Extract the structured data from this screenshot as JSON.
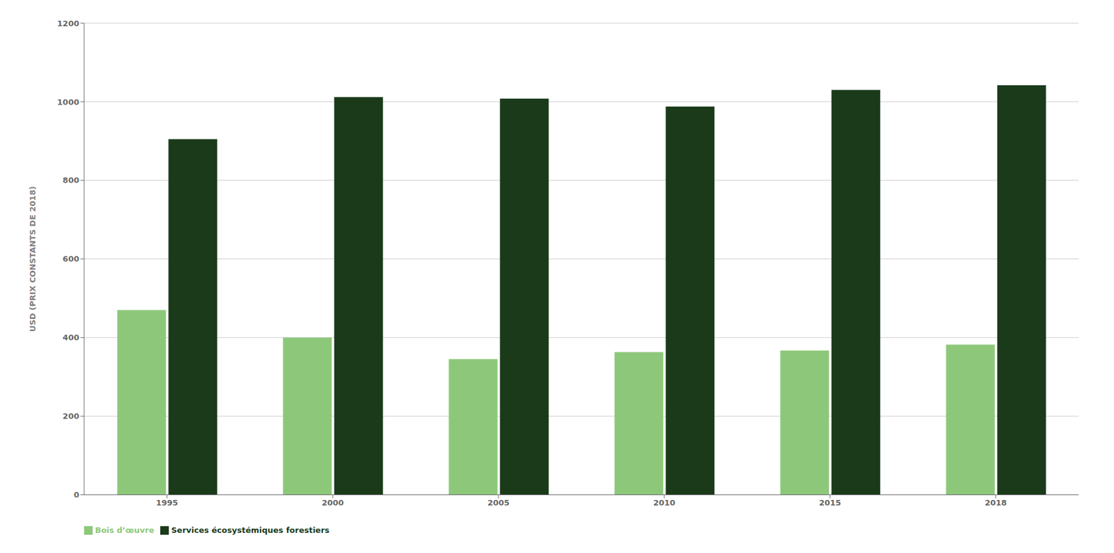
{
  "chart_data": {
    "type": "bar",
    "categories": [
      "1995",
      "2000",
      "2005",
      "2010",
      "2015",
      "2018"
    ],
    "series": [
      {
        "name": "Bois d’œuvre",
        "color": "#8dc87a",
        "values": [
          470,
          400,
          345,
          363,
          367,
          382
        ]
      },
      {
        "name": "Services écosystémiques forestiers",
        "color": "#1a3a1a",
        "values": [
          905,
          1012,
          1008,
          988,
          1030,
          1042
        ]
      }
    ],
    "ylabel": "USD (PRIX CONSTANTS DE 2018)",
    "ylim": [
      0,
      1200
    ],
    "yticks": [
      0,
      200,
      400,
      600,
      800,
      1000,
      1200
    ],
    "grid": true,
    "legend": "lower left"
  }
}
